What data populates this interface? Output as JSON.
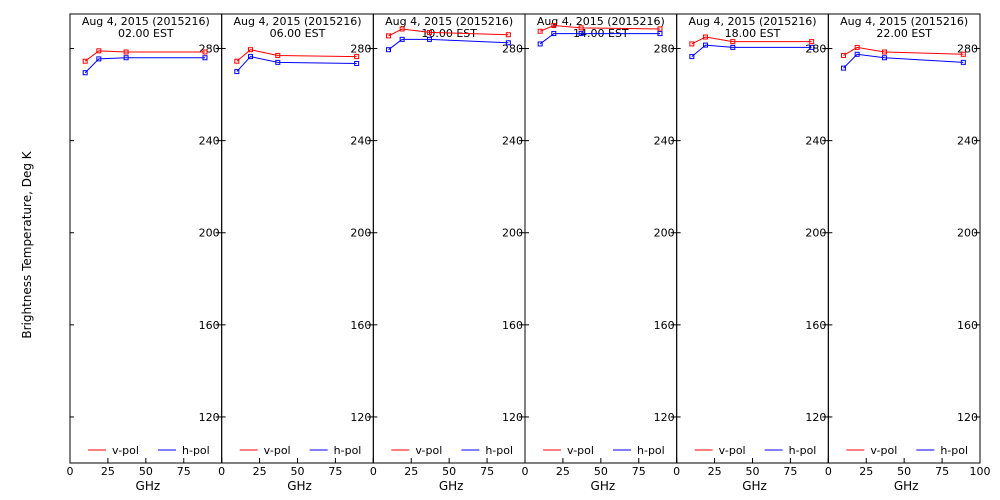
{
  "chart_data": {
    "type": "line",
    "ylabel": "Brightness Temperature, Deg K",
    "xlabel": "GHz",
    "xlim": [
      0,
      100
    ],
    "ylim": [
      100,
      295
    ],
    "xticks": [
      0,
      25,
      50,
      75,
      100
    ],
    "yticks": [
      120,
      160,
      200,
      240,
      280
    ],
    "grid": false,
    "legend_position": "bottom",
    "colors": {
      "v-pol": "#ff0000",
      "h-pol": "#0000ff"
    },
    "panels": [
      {
        "title_line1": "Aug  4, 2015 (2015216)",
        "title_line2": "02.00 EST",
        "series": [
          {
            "name": "v-pol",
            "x": [
              10,
              19,
              37,
              89
            ],
            "y": [
              274.5,
              279,
              278.5,
              278.5
            ]
          },
          {
            "name": "h-pol",
            "x": [
              10,
              19,
              37,
              89
            ],
            "y": [
              269.5,
              275.5,
              276,
              276
            ]
          }
        ]
      },
      {
        "title_line1": "Aug  4, 2015 (2015216)",
        "title_line2": "06.00 EST",
        "series": [
          {
            "name": "v-pol",
            "x": [
              10,
              19,
              37,
              89
            ],
            "y": [
              274.5,
              279.5,
              277,
              276.5
            ]
          },
          {
            "name": "h-pol",
            "x": [
              10,
              19,
              37,
              89
            ],
            "y": [
              270,
              276.5,
              274,
              273.5
            ]
          }
        ]
      },
      {
        "title_line1": "Aug  4, 2015 (2015216)",
        "title_line2": "10.00 EST",
        "series": [
          {
            "name": "v-pol",
            "x": [
              10,
              19,
              37,
              89
            ],
            "y": [
              285.5,
              288.5,
              287,
              286
            ]
          },
          {
            "name": "h-pol",
            "x": [
              10,
              19,
              37,
              89
            ],
            "y": [
              279.5,
              284,
              284,
              282.5
            ]
          }
        ]
      },
      {
        "title_line1": "Aug  4, 2015 (2015216)",
        "title_line2": "14.00 EST",
        "series": [
          {
            "name": "v-pol",
            "x": [
              10,
              19,
              37,
              89
            ],
            "y": [
              287.5,
              290,
              289,
              288.5
            ]
          },
          {
            "name": "h-pol",
            "x": [
              10,
              19,
              37,
              89
            ],
            "y": [
              282,
              286.5,
              286.5,
              286.5
            ]
          }
        ]
      },
      {
        "title_line1": "Aug  4, 2015 (2015216)",
        "title_line2": "18.00 EST",
        "series": [
          {
            "name": "v-pol",
            "x": [
              10,
              19,
              37,
              89
            ],
            "y": [
              282,
              285,
              283,
              283
            ]
          },
          {
            "name": "h-pol",
            "x": [
              10,
              19,
              37,
              89
            ],
            "y": [
              276.5,
              281.5,
              280.5,
              280.5
            ]
          }
        ]
      },
      {
        "title_line1": "Aug  4, 2015 (2015216)",
        "title_line2": "22.00 EST",
        "series": [
          {
            "name": "v-pol",
            "x": [
              10,
              19,
              37,
              89
            ],
            "y": [
              277,
              280.5,
              278.5,
              277.5
            ]
          },
          {
            "name": "h-pol",
            "x": [
              10,
              19,
              37,
              89
            ],
            "y": [
              271.5,
              277.5,
              276,
              274
            ]
          }
        ]
      }
    ]
  }
}
